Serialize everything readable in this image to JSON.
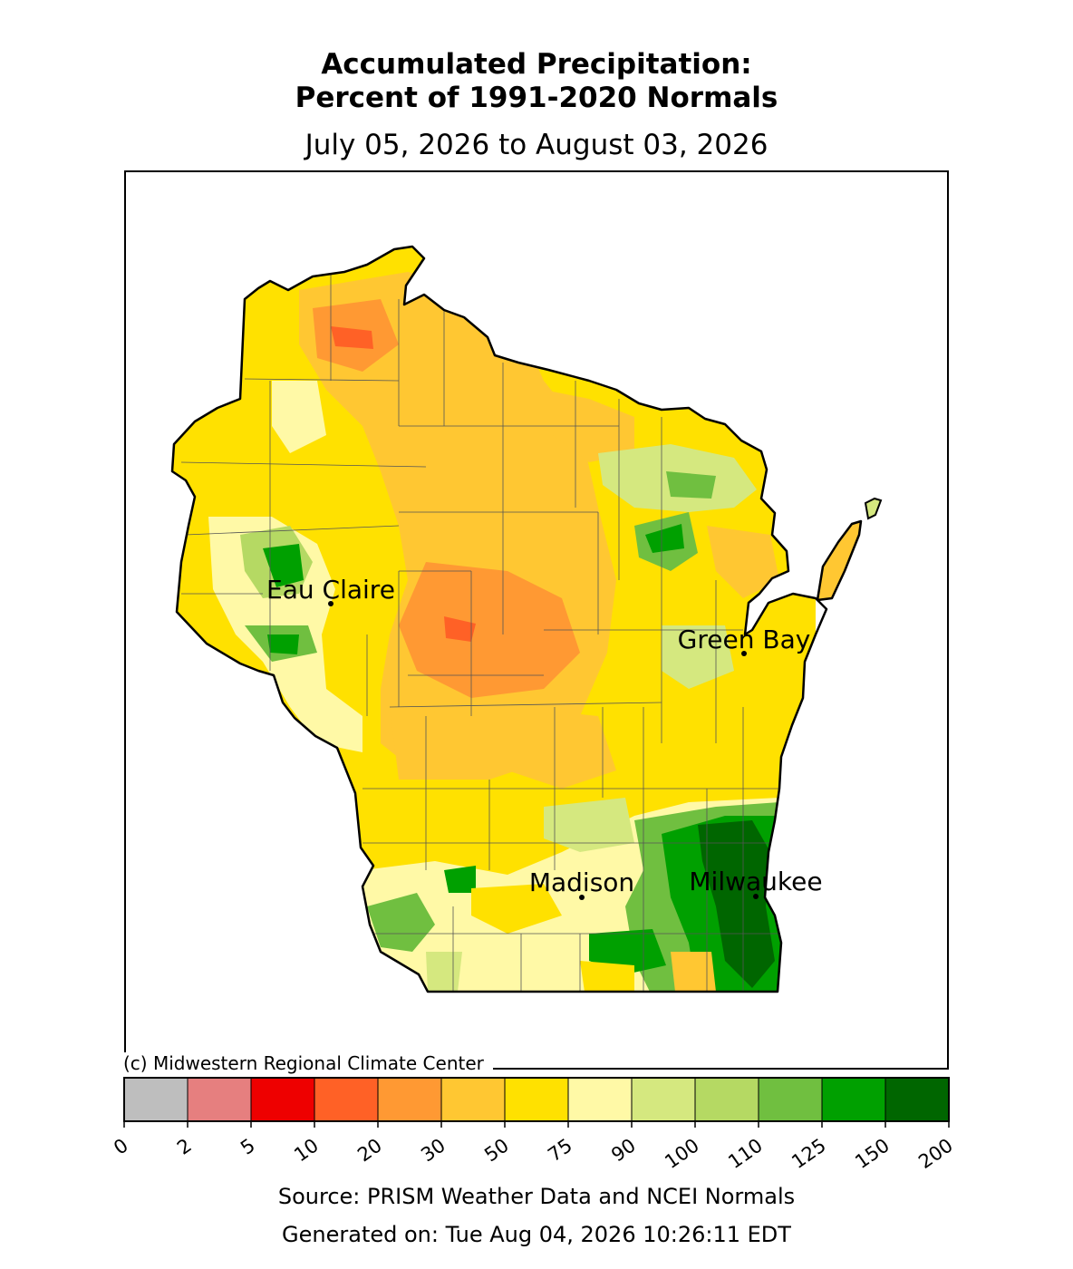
{
  "header": {
    "title_line1": "Accumulated Precipitation:",
    "title_line2": "Percent of 1991-2020 Normals",
    "date_range": "July 05, 2026 to August 03, 2026"
  },
  "map": {
    "region": "Wisconsin",
    "cities": [
      {
        "name": "Eau Claire"
      },
      {
        "name": "Green Bay"
      },
      {
        "name": "Madison"
      },
      {
        "name": "Milwaukee"
      }
    ]
  },
  "copyright": "(c) Midwestern Regional Climate Center",
  "legend": {
    "ticks": [
      "0",
      "2",
      "5",
      "10",
      "20",
      "30",
      "50",
      "75",
      "90",
      "100",
      "110",
      "125",
      "150",
      "200"
    ],
    "colors": [
      "#bebebe",
      "#e67f7f",
      "#ee0000",
      "#ff6126",
      "#ff9933",
      "#ffc732",
      "#ffe100",
      "#fff9a6",
      "#d5e87f",
      "#b5d963",
      "#70bf40",
      "#00a000",
      "#006600"
    ]
  },
  "footer": {
    "source": "Source: PRISM Weather Data and NCEI Normals",
    "generated": "Generated on: Tue Aug 04, 2026 10:26:11 EDT"
  }
}
